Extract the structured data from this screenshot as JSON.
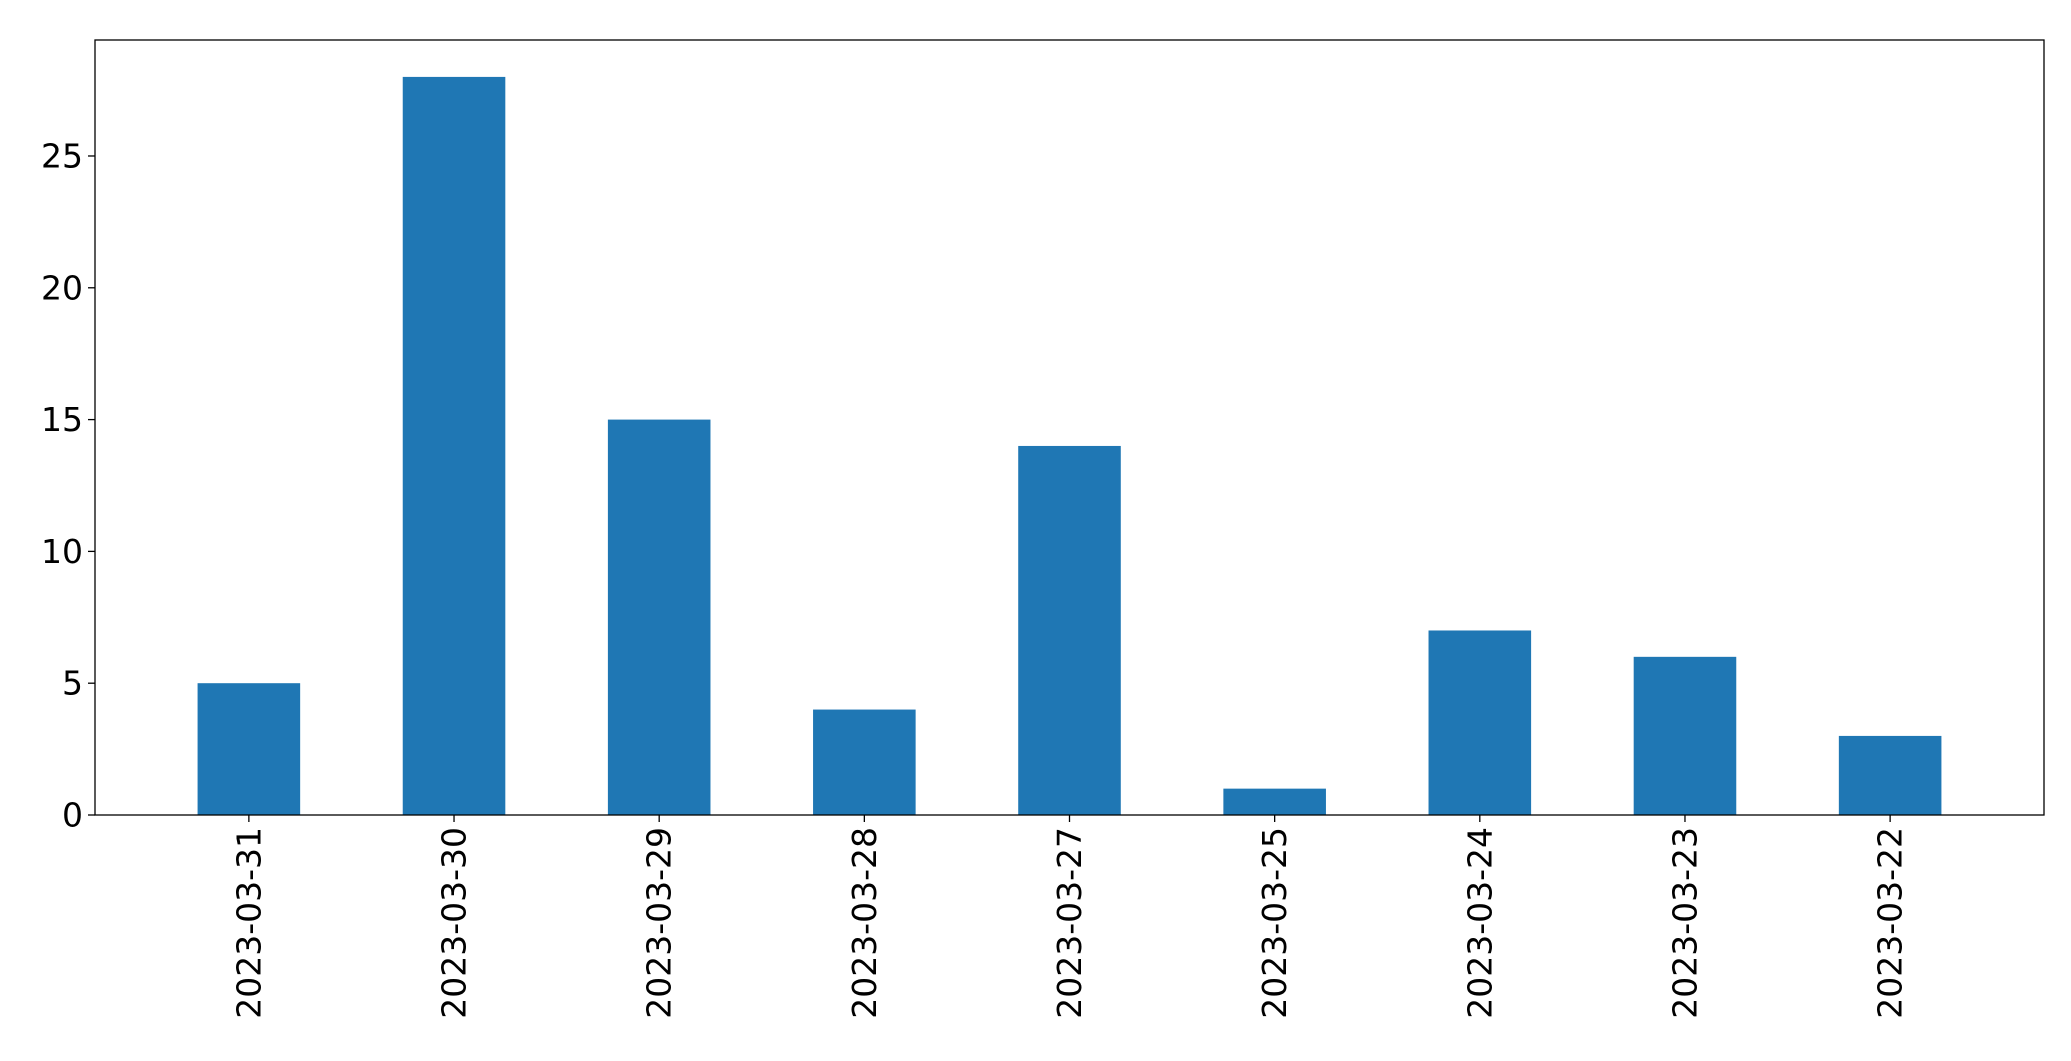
{
  "chart_data": {
    "type": "bar",
    "categories": [
      "2023-03-31",
      "2023-03-30",
      "2023-03-29",
      "2023-03-28",
      "2023-03-27",
      "2023-03-25",
      "2023-03-24",
      "2023-03-23",
      "2023-03-22"
    ],
    "values": [
      5,
      28,
      15,
      4,
      14,
      1,
      7,
      6,
      3
    ],
    "title": "",
    "xlabel": "",
    "ylabel": "",
    "ylim": [
      0,
      29.4
    ],
    "yticks": [
      0,
      5,
      10,
      15,
      20,
      25
    ],
    "grid": false,
    "legend": "none",
    "bar_color": "#1f77b4"
  }
}
